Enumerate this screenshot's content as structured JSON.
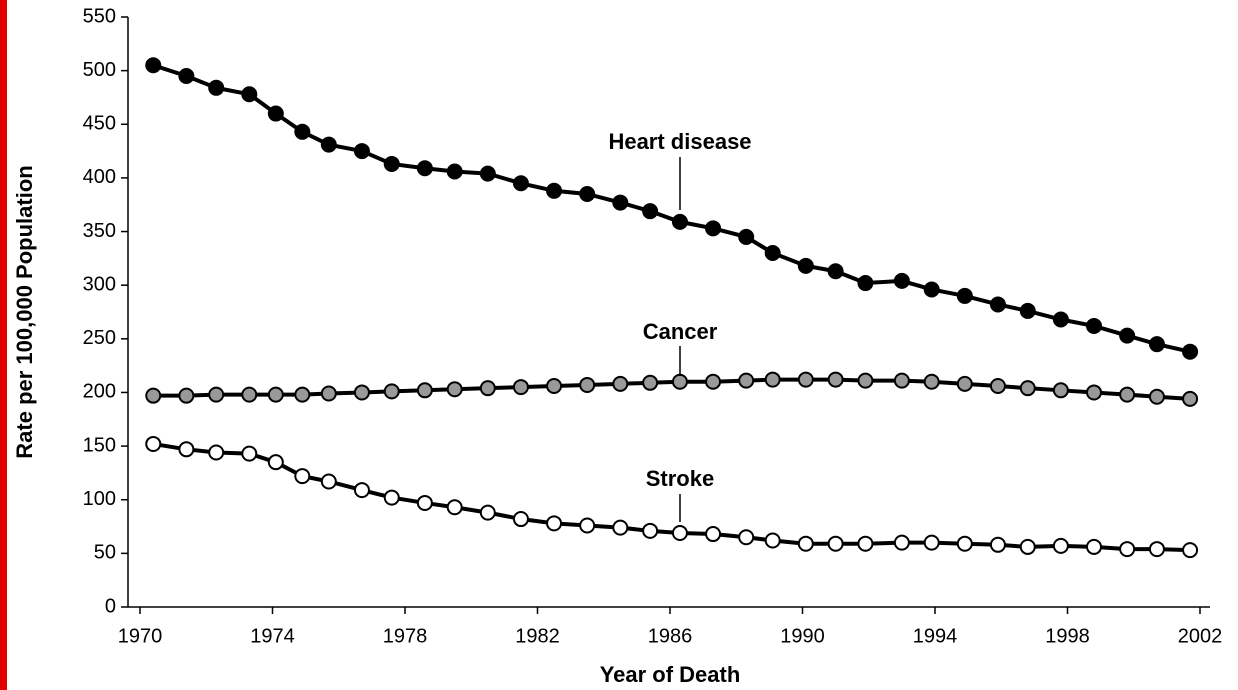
{
  "chart_data": {
    "type": "line",
    "x_label": "Year of Death",
    "y_label": "Rate per 100,000 Population",
    "xlim": [
      1970,
      2002
    ],
    "xticks": [
      1970,
      1974,
      1978,
      1982,
      1986,
      1990,
      1994,
      1998,
      2002
    ],
    "ylim": [
      0,
      550
    ],
    "yticks": [
      0,
      50,
      100,
      150,
      200,
      250,
      300,
      350,
      400,
      450,
      500,
      550
    ],
    "x": [
      1970.4,
      1971.4,
      1972.3,
      1973.3,
      1974.1,
      1974.9,
      1975.7,
      1976.7,
      1977.6,
      1978.6,
      1979.5,
      1980.5,
      1981.5,
      1982.5,
      1983.5,
      1984.5,
      1985.4,
      1986.3,
      1987.3,
      1988.3,
      1989.1,
      1990.1,
      1991.0,
      1991.9,
      1993.0,
      1993.9,
      1994.9,
      1995.9,
      1996.8,
      1997.8,
      1998.8,
      1999.8,
      2000.7,
      2001.7
    ],
    "series": [
      {
        "name": "Heart disease",
        "color": "#000000",
        "marker_fill": "#000000",
        "values": [
          505,
          495,
          484,
          478,
          460,
          443,
          431,
          425,
          413,
          409,
          406,
          404,
          395,
          388,
          385,
          377,
          369,
          359,
          353,
          345,
          330,
          318,
          313,
          302,
          304,
          296,
          290,
          282,
          276,
          268,
          262,
          253,
          245,
          238
        ]
      },
      {
        "name": "Cancer",
        "color": "#000000",
        "marker_fill": "#999999",
        "values": [
          197,
          197,
          198,
          198,
          198,
          198,
          199,
          200,
          201,
          202,
          203,
          204,
          205,
          206,
          207,
          208,
          209,
          210,
          210,
          211,
          212,
          212,
          212,
          211,
          211,
          210,
          208,
          206,
          204,
          202,
          200,
          198,
          196,
          194
        ]
      },
      {
        "name": "Stroke",
        "color": "#000000",
        "marker_fill": "#ffffff",
        "values": [
          152,
          147,
          144,
          143,
          135,
          122,
          117,
          109,
          102,
          97,
          93,
          88,
          82,
          78,
          76,
          74,
          71,
          69,
          68,
          65,
          62,
          59,
          59,
          59,
          60,
          60,
          59,
          58,
          56,
          57,
          56,
          54,
          54,
          53
        ]
      }
    ]
  }
}
